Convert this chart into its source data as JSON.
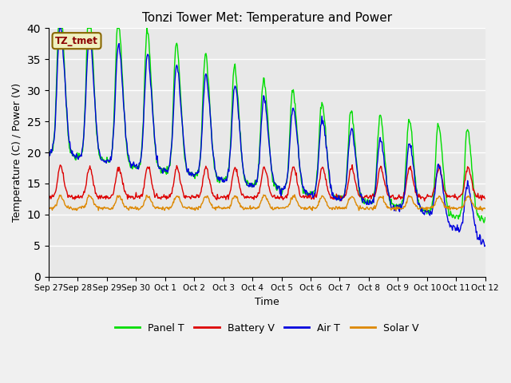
{
  "title": "Tonzi Tower Met: Temperature and Power",
  "xlabel": "Time",
  "ylabel": "Temperature (C) / Power (V)",
  "ylim": [
    0,
    40
  ],
  "yticks": [
    0,
    5,
    10,
    15,
    20,
    25,
    30,
    35,
    40
  ],
  "x_labels": [
    "Sep 27",
    "Sep 28",
    "Sep 29",
    "Sep 30",
    "Oct 1",
    "Oct 2",
    "Oct 3",
    "Oct 4",
    "Oct 5",
    "Oct 6",
    "Oct 7",
    "Oct 8",
    "Oct 9",
    "Oct 10",
    "Oct 11",
    "Oct 12"
  ],
  "annotation_text": "TZ_tmet",
  "colors": {
    "panel_t": "#00dd00",
    "battery_v": "#dd0000",
    "air_t": "#0000dd",
    "solar_v": "#dd8800"
  },
  "plot_bg": "#e8e8e8",
  "fig_bg": "#f0f0f0",
  "legend_labels": [
    "Panel T",
    "Battery V",
    "Air T",
    "Solar V"
  ]
}
